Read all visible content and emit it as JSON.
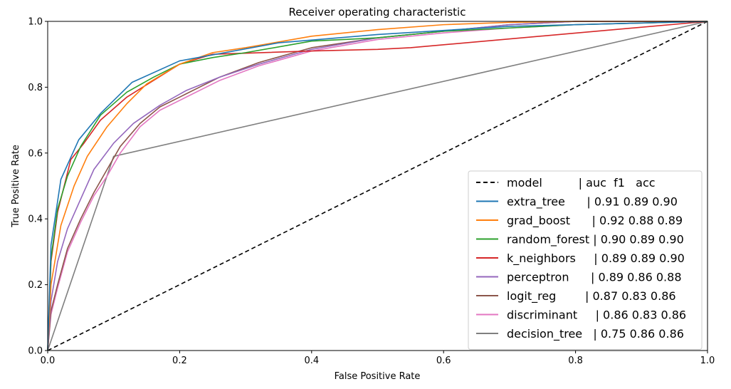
{
  "chart_data": {
    "type": "line",
    "title": "Receiver operating characteristic",
    "xlabel": "False Positive Rate",
    "ylabel": "True Positive Rate",
    "xlim": [
      0,
      1
    ],
    "ylim": [
      0,
      1
    ],
    "xticks": [
      "0.0",
      "0.2",
      "0.4",
      "0.6",
      "0.8",
      "1.0"
    ],
    "yticks": [
      "0.0",
      "0.2",
      "0.4",
      "0.6",
      "0.8",
      "1.0"
    ],
    "grid": false,
    "legend_position": "lower-right",
    "legend_header": "model          | auc  f1   acc",
    "reference_line": {
      "style": "dashed",
      "color": "#000000",
      "x": [
        0,
        1
      ],
      "y": [
        0,
        1
      ]
    },
    "series": [
      {
        "name": "extra_tree      | 0.91 0.89 0.90",
        "color": "#1f77b4",
        "x": [
          0,
          0.005,
          0.02,
          0.047,
          0.08,
          0.128,
          0.2,
          0.35,
          0.5,
          0.7,
          1.0
        ],
        "y": [
          0,
          0.32,
          0.52,
          0.64,
          0.72,
          0.815,
          0.88,
          0.935,
          0.96,
          0.985,
          1.0
        ]
      },
      {
        "name": "grad_boost      | 0.92 0.88 0.89",
        "color": "#ff7f0e",
        "x": [
          0,
          0.005,
          0.02,
          0.04,
          0.06,
          0.09,
          0.12,
          0.15,
          0.2,
          0.25,
          0.3,
          0.4,
          0.5,
          0.6,
          0.7,
          0.8,
          1.0
        ],
        "y": [
          0,
          0.2,
          0.38,
          0.5,
          0.59,
          0.68,
          0.75,
          0.81,
          0.87,
          0.905,
          0.92,
          0.955,
          0.975,
          0.99,
          0.997,
          1.0,
          1.0
        ]
      },
      {
        "name": "random_forest | 0.90 0.89 0.90",
        "color": "#2ca02c",
        "x": [
          0,
          0.005,
          0.015,
          0.03,
          0.05,
          0.08,
          0.12,
          0.16,
          0.2,
          0.25,
          0.3,
          0.4,
          0.5,
          0.6,
          0.7,
          0.8,
          0.9,
          1.0
        ],
        "y": [
          0,
          0.28,
          0.43,
          0.53,
          0.62,
          0.715,
          0.785,
          0.83,
          0.87,
          0.89,
          0.905,
          0.94,
          0.95,
          0.97,
          0.98,
          0.99,
          0.995,
          1.0
        ]
      },
      {
        "name": "k_neighbors     | 0.89 0.89 0.90",
        "color": "#d62728",
        "x": [
          0,
          0.005,
          0.015,
          0.035,
          0.055,
          0.08,
          0.12,
          0.2,
          0.25,
          0.4,
          0.5,
          0.55,
          1.0
        ],
        "y": [
          0,
          0.27,
          0.42,
          0.58,
          0.63,
          0.7,
          0.77,
          0.87,
          0.9,
          0.91,
          0.915,
          0.92,
          1.0
        ]
      },
      {
        "name": "perceptron      | 0.89 0.86 0.88",
        "color": "#9467bd",
        "x": [
          0,
          0.005,
          0.015,
          0.03,
          0.05,
          0.07,
          0.1,
          0.13,
          0.17,
          0.21,
          0.26,
          0.32,
          0.4,
          0.5,
          0.6,
          0.7,
          0.8,
          0.9,
          1.0
        ],
        "y": [
          0,
          0.15,
          0.27,
          0.37,
          0.46,
          0.55,
          0.63,
          0.69,
          0.745,
          0.79,
          0.83,
          0.87,
          0.915,
          0.95,
          0.97,
          0.99,
          1.0,
          1.0,
          1.0
        ]
      },
      {
        "name": "logit_reg        | 0.87 0.83 0.86",
        "color": "#8c564b",
        "x": [
          0,
          0.005,
          0.015,
          0.03,
          0.05,
          0.07,
          0.09,
          0.11,
          0.14,
          0.17,
          0.21,
          0.26,
          0.32,
          0.4,
          0.5,
          0.6,
          0.7,
          0.8,
          0.9,
          1.0
        ],
        "y": [
          0,
          0.12,
          0.2,
          0.31,
          0.4,
          0.48,
          0.55,
          0.62,
          0.69,
          0.74,
          0.78,
          0.83,
          0.875,
          0.92,
          0.95,
          0.97,
          0.99,
          1.0,
          1.0,
          1.0
        ]
      },
      {
        "name": "discriminant     | 0.86 0.83 0.86",
        "color": "#e377c2",
        "x": [
          0,
          0.005,
          0.015,
          0.03,
          0.05,
          0.07,
          0.09,
          0.11,
          0.14,
          0.17,
          0.21,
          0.26,
          0.32,
          0.4,
          0.5,
          0.6,
          0.7,
          0.8,
          0.9,
          1.0
        ],
        "y": [
          0,
          0.11,
          0.19,
          0.3,
          0.39,
          0.47,
          0.53,
          0.6,
          0.68,
          0.73,
          0.77,
          0.82,
          0.865,
          0.91,
          0.945,
          0.965,
          0.98,
          0.99,
          0.995,
          1.0
        ]
      },
      {
        "name": "decision_tree   | 0.75 0.86 0.86",
        "color": "#7f7f7f",
        "x": [
          0,
          0.1,
          1.0
        ],
        "y": [
          0,
          0.59,
          1.0
        ]
      }
    ]
  }
}
